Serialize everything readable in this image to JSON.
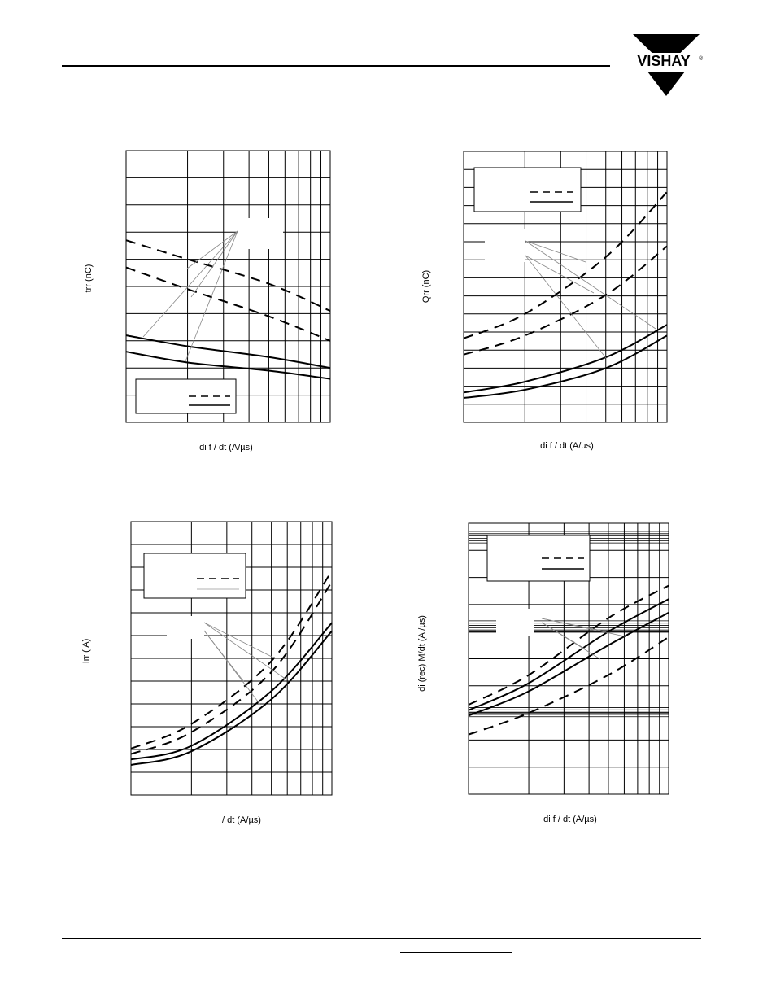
{
  "header": {
    "logo_text": "VISHAY"
  },
  "colors": {
    "ink": "#000000",
    "grid": "#000000",
    "leader": "#888888",
    "legend_faint": "#cccccc"
  },
  "chart_data": [
    {
      "type": "line",
      "title": "",
      "ylabel": "trr (nC)",
      "xlabel": "di f / dt (A/µs)",
      "xscale": "log",
      "xlim": [
        100,
        1000
      ],
      "ylim": [
        0,
        100
      ],
      "grid": true,
      "legend_placement": "bottom-left",
      "series": [
        {
          "style": "dashed",
          "x": [
            100,
            200,
            500,
            1000
          ],
          "y": [
            67,
            60,
            51,
            41
          ]
        },
        {
          "style": "dashed",
          "x": [
            100,
            200,
            500,
            1000
          ],
          "y": [
            57,
            49,
            39,
            30
          ]
        },
        {
          "style": "solid",
          "x": [
            100,
            200,
            500,
            1000
          ],
          "y": [
            32,
            28,
            24,
            20
          ]
        },
        {
          "style": "solid",
          "x": [
            100,
            200,
            500,
            1000
          ],
          "y": [
            26,
            22,
            19,
            16
          ]
        }
      ]
    },
    {
      "type": "line",
      "title": "",
      "ylabel": "Qrr (nC)",
      "xlabel": "di f / dt (A/µs)",
      "xscale": "log",
      "xlim": [
        100,
        1000
      ],
      "ylim": [
        0,
        100
      ],
      "grid": true,
      "legend_placement": "top-left",
      "series": [
        {
          "style": "dashed",
          "x": [
            100,
            200,
            500,
            1000
          ],
          "y": [
            31,
            40,
            61,
            85
          ]
        },
        {
          "style": "dashed",
          "x": [
            100,
            200,
            500,
            1000
          ],
          "y": [
            25,
            32,
            47,
            65
          ]
        },
        {
          "style": "solid",
          "x": [
            100,
            200,
            500,
            1000
          ],
          "y": [
            11,
            15,
            24,
            36
          ]
        },
        {
          "style": "solid",
          "x": [
            100,
            200,
            500,
            1000
          ],
          "y": [
            9,
            12,
            20,
            32
          ]
        }
      ]
    },
    {
      "type": "line",
      "title": "",
      "ylabel": "Irr ( A)",
      "xlabel": "/ dt (A/µs)",
      "xscale": "log",
      "xlim": [
        100,
        1000
      ],
      "ylim": [
        0,
        100
      ],
      "grid": true,
      "legend_placement": "top-left",
      "series": [
        {
          "style": "dashed",
          "x": [
            100,
            200,
            500,
            1000
          ],
          "y": [
            17,
            26,
            49,
            82
          ]
        },
        {
          "style": "dashed",
          "x": [
            100,
            200,
            500,
            1000
          ],
          "y": [
            15,
            23,
            45,
            78
          ]
        },
        {
          "style": "solid",
          "x": [
            100,
            200,
            500,
            1000
          ],
          "y": [
            13,
            18,
            38,
            63
          ]
        },
        {
          "style": "solid",
          "x": [
            100,
            200,
            500,
            1000
          ],
          "y": [
            11,
            16,
            35,
            60
          ]
        }
      ]
    },
    {
      "type": "line",
      "title": "",
      "ylabel": "di (rec) M/dt (A /µs)",
      "xlabel": "di f / dt (A/µs)",
      "xscale": "log",
      "xlim": [
        100,
        1000
      ],
      "ylim": [
        0,
        100
      ],
      "grid": true,
      "legend_placement": "top-left",
      "series": [
        {
          "style": "dashed",
          "x": [
            100,
            200,
            500,
            1000
          ],
          "y": [
            33,
            44,
            65,
            77
          ]
        },
        {
          "style": "solid",
          "x": [
            100,
            200,
            500,
            1000
          ],
          "y": [
            31,
            41,
            60,
            72
          ]
        },
        {
          "style": "solid",
          "x": [
            100,
            200,
            500,
            1000
          ],
          "y": [
            29,
            38,
            55,
            67
          ]
        },
        {
          "style": "dashed",
          "x": [
            100,
            200,
            500,
            1000
          ],
          "y": [
            22,
            30,
            44,
            58
          ]
        }
      ]
    }
  ]
}
